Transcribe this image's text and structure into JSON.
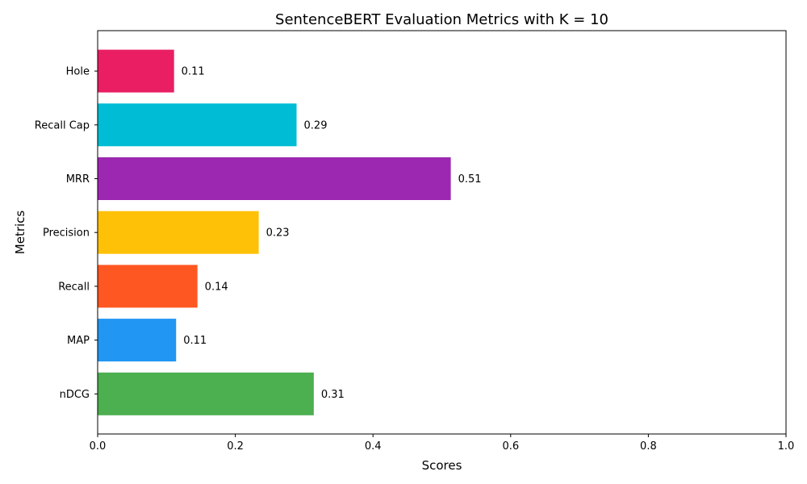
{
  "chart_data": {
    "type": "bar",
    "orientation": "horizontal",
    "title": "SentenceBERT Evaluation Metrics with K = 10",
    "xlabel": "Scores",
    "ylabel": "Metrics",
    "xlim": [
      0,
      1
    ],
    "xticks": [
      0.0,
      0.2,
      0.4,
      0.6,
      0.8,
      1.0
    ],
    "xtick_labels": [
      "0.0",
      "0.2",
      "0.4",
      "0.6",
      "0.8",
      "1.0"
    ],
    "grid": false,
    "categories": [
      "nDCG",
      "MAP",
      "Recall",
      "Precision",
      "MRR",
      "Recall Cap",
      "Hole"
    ],
    "values": [
      0.314,
      0.114,
      0.145,
      0.234,
      0.513,
      0.289,
      0.111
    ],
    "value_labels": [
      "0.31",
      "0.11",
      "0.14",
      "0.23",
      "0.51",
      "0.29",
      "0.11"
    ],
    "colors": [
      "#4caf50",
      "#2196f3",
      "#ff5722",
      "#ffc107",
      "#9c27b0",
      "#00bcd4",
      "#e91e63"
    ]
  }
}
